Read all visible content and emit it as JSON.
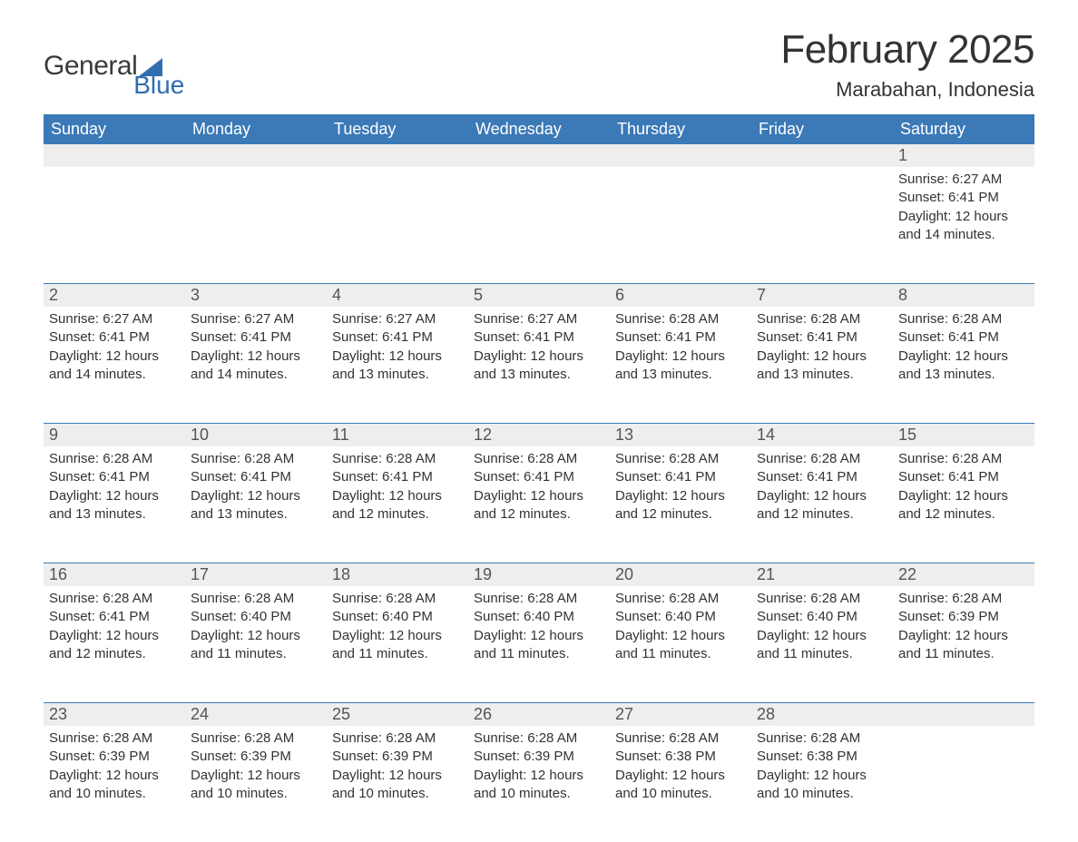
{
  "logo": {
    "text1": "General",
    "text2": "Blue",
    "triangle_color": "#2f6fb0"
  },
  "title": "February 2025",
  "location": "Marabahan, Indonesia",
  "colors": {
    "header_bg": "#3b79b7",
    "header_text": "#ffffff",
    "daynum_bg": "#eeeeee",
    "body_text": "#333333",
    "page_bg": "#ffffff",
    "row_divider": "#3b79b7"
  },
  "weekdays": [
    "Sunday",
    "Monday",
    "Tuesday",
    "Wednesday",
    "Thursday",
    "Friday",
    "Saturday"
  ],
  "labels": {
    "sunrise": "Sunrise:",
    "sunset": "Sunset:",
    "daylight": "Daylight:"
  },
  "weeks": [
    [
      null,
      null,
      null,
      null,
      null,
      null,
      {
        "day": "1",
        "sunrise": "6:27 AM",
        "sunset": "6:41 PM",
        "daylight1": "12 hours",
        "daylight2": "and 14 minutes."
      }
    ],
    [
      {
        "day": "2",
        "sunrise": "6:27 AM",
        "sunset": "6:41 PM",
        "daylight1": "12 hours",
        "daylight2": "and 14 minutes."
      },
      {
        "day": "3",
        "sunrise": "6:27 AM",
        "sunset": "6:41 PM",
        "daylight1": "12 hours",
        "daylight2": "and 14 minutes."
      },
      {
        "day": "4",
        "sunrise": "6:27 AM",
        "sunset": "6:41 PM",
        "daylight1": "12 hours",
        "daylight2": "and 13 minutes."
      },
      {
        "day": "5",
        "sunrise": "6:27 AM",
        "sunset": "6:41 PM",
        "daylight1": "12 hours",
        "daylight2": "and 13 minutes."
      },
      {
        "day": "6",
        "sunrise": "6:28 AM",
        "sunset": "6:41 PM",
        "daylight1": "12 hours",
        "daylight2": "and 13 minutes."
      },
      {
        "day": "7",
        "sunrise": "6:28 AM",
        "sunset": "6:41 PM",
        "daylight1": "12 hours",
        "daylight2": "and 13 minutes."
      },
      {
        "day": "8",
        "sunrise": "6:28 AM",
        "sunset": "6:41 PM",
        "daylight1": "12 hours",
        "daylight2": "and 13 minutes."
      }
    ],
    [
      {
        "day": "9",
        "sunrise": "6:28 AM",
        "sunset": "6:41 PM",
        "daylight1": "12 hours",
        "daylight2": "and 13 minutes."
      },
      {
        "day": "10",
        "sunrise": "6:28 AM",
        "sunset": "6:41 PM",
        "daylight1": "12 hours",
        "daylight2": "and 13 minutes."
      },
      {
        "day": "11",
        "sunrise": "6:28 AM",
        "sunset": "6:41 PM",
        "daylight1": "12 hours",
        "daylight2": "and 12 minutes."
      },
      {
        "day": "12",
        "sunrise": "6:28 AM",
        "sunset": "6:41 PM",
        "daylight1": "12 hours",
        "daylight2": "and 12 minutes."
      },
      {
        "day": "13",
        "sunrise": "6:28 AM",
        "sunset": "6:41 PM",
        "daylight1": "12 hours",
        "daylight2": "and 12 minutes."
      },
      {
        "day": "14",
        "sunrise": "6:28 AM",
        "sunset": "6:41 PM",
        "daylight1": "12 hours",
        "daylight2": "and 12 minutes."
      },
      {
        "day": "15",
        "sunrise": "6:28 AM",
        "sunset": "6:41 PM",
        "daylight1": "12 hours",
        "daylight2": "and 12 minutes."
      }
    ],
    [
      {
        "day": "16",
        "sunrise": "6:28 AM",
        "sunset": "6:41 PM",
        "daylight1": "12 hours",
        "daylight2": "and 12 minutes."
      },
      {
        "day": "17",
        "sunrise": "6:28 AM",
        "sunset": "6:40 PM",
        "daylight1": "12 hours",
        "daylight2": "and 11 minutes."
      },
      {
        "day": "18",
        "sunrise": "6:28 AM",
        "sunset": "6:40 PM",
        "daylight1": "12 hours",
        "daylight2": "and 11 minutes."
      },
      {
        "day": "19",
        "sunrise": "6:28 AM",
        "sunset": "6:40 PM",
        "daylight1": "12 hours",
        "daylight2": "and 11 minutes."
      },
      {
        "day": "20",
        "sunrise": "6:28 AM",
        "sunset": "6:40 PM",
        "daylight1": "12 hours",
        "daylight2": "and 11 minutes."
      },
      {
        "day": "21",
        "sunrise": "6:28 AM",
        "sunset": "6:40 PM",
        "daylight1": "12 hours",
        "daylight2": "and 11 minutes."
      },
      {
        "day": "22",
        "sunrise": "6:28 AM",
        "sunset": "6:39 PM",
        "daylight1": "12 hours",
        "daylight2": "and 11 minutes."
      }
    ],
    [
      {
        "day": "23",
        "sunrise": "6:28 AM",
        "sunset": "6:39 PM",
        "daylight1": "12 hours",
        "daylight2": "and 10 minutes."
      },
      {
        "day": "24",
        "sunrise": "6:28 AM",
        "sunset": "6:39 PM",
        "daylight1": "12 hours",
        "daylight2": "and 10 minutes."
      },
      {
        "day": "25",
        "sunrise": "6:28 AM",
        "sunset": "6:39 PM",
        "daylight1": "12 hours",
        "daylight2": "and 10 minutes."
      },
      {
        "day": "26",
        "sunrise": "6:28 AM",
        "sunset": "6:39 PM",
        "daylight1": "12 hours",
        "daylight2": "and 10 minutes."
      },
      {
        "day": "27",
        "sunrise": "6:28 AM",
        "sunset": "6:38 PM",
        "daylight1": "12 hours",
        "daylight2": "and 10 minutes."
      },
      {
        "day": "28",
        "sunrise": "6:28 AM",
        "sunset": "6:38 PM",
        "daylight1": "12 hours",
        "daylight2": "and 10 minutes."
      },
      null
    ]
  ]
}
